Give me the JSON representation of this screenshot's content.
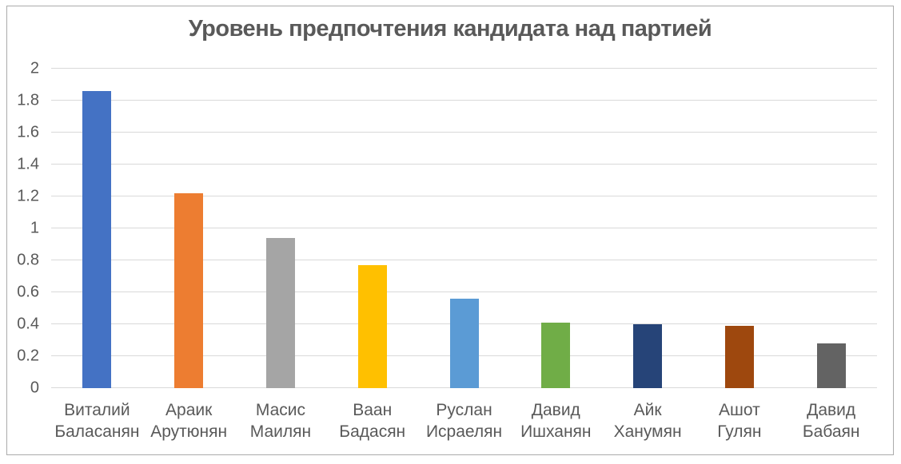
{
  "chart_data": {
    "type": "bar",
    "title": "Уровень предпочтения кандидата над партией",
    "categories": [
      [
        "Виталий",
        "Баласанян"
      ],
      [
        "Араик",
        "Арутюнян"
      ],
      [
        "Масис",
        "Маилян"
      ],
      [
        "Ваан",
        "Бадасян"
      ],
      [
        "Руслан",
        "Исраелян"
      ],
      [
        "Давид",
        "Ишханян"
      ],
      [
        "Айк",
        "Ханумян"
      ],
      [
        "Ашот",
        "Гулян"
      ],
      [
        "Давид",
        "Бабаян"
      ]
    ],
    "values": [
      1.86,
      1.22,
      0.94,
      0.77,
      0.56,
      0.41,
      0.4,
      0.39,
      0.28
    ],
    "bar_colors": [
      "#4472C4",
      "#ED7D31",
      "#A5A5A5",
      "#FFC000",
      "#5B9BD5",
      "#70AD47",
      "#264478",
      "#9E480E",
      "#636363"
    ],
    "ylim": [
      0,
      2
    ],
    "yticks": [
      "2",
      "1.8",
      "1.6",
      "1.4",
      "1.2",
      "1",
      "0.8",
      "0.6",
      "0.4",
      "0.2",
      "0"
    ],
    "grid": true,
    "legend": "none"
  },
  "colors": {
    "title_text": "#595959",
    "axis_text": "#595959",
    "gridline": "#D9D9D9",
    "frame_border": "#ABABAB",
    "background": "#FFFFFF"
  }
}
